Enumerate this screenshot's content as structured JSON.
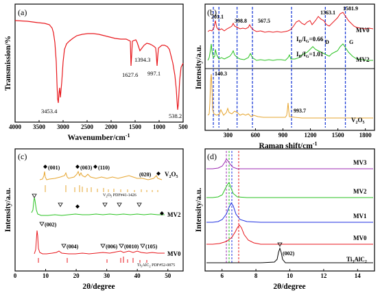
{
  "colors": {
    "black": "#000000",
    "red": "#e8161b",
    "green": "#27c21f",
    "blue": "#1c2de0",
    "purple": "#9b27b0",
    "orange": "#e6a42c",
    "navy": "#1f3fd6"
  },
  "chart_data": [
    {
      "panel": "(a)",
      "type": "line",
      "xlabel": "Wavenumber/cm",
      "xlabel_sup": "-1",
      "ylabel": "Transmission/%",
      "xlim": [
        4000,
        500
      ],
      "xticks": [
        "4000",
        "3500",
        "3000",
        "2500",
        "2000",
        "1500",
        "1000",
        "500"
      ],
      "annotations": [
        "3453.4",
        "1627.6",
        "1394.3",
        "997.1",
        "538.2"
      ]
    },
    {
      "panel": "(b)",
      "type": "line",
      "xlabel": "Raman shift/cm",
      "xlabel_sup": "-1",
      "ylabel": "Intensity/a.u.",
      "xlim": [
        50,
        1900
      ],
      "xticks": [
        "300",
        "600",
        "900",
        "1200",
        "1500",
        "1800"
      ],
      "series": [
        {
          "name": "MV0"
        },
        {
          "name": "MV2"
        },
        {
          "name": "V2O5"
        }
      ],
      "annotations": [
        "201.1",
        "398.8",
        "567.5",
        "1363.1",
        "1581.9",
        "140.3",
        "993.7",
        "D",
        "G"
      ],
      "ratios": [
        {
          "lead": "I",
          "s1": "D",
          "mid": "/I",
          "s2": "G",
          "val": "=0.66"
        },
        {
          "lead": "I",
          "s1": "D",
          "mid": "/I",
          "s2": "G",
          "val": "=1.01"
        }
      ],
      "vlines": [
        140,
        201,
        399,
        567,
        994,
        1363,
        1582
      ]
    },
    {
      "panel": "(c)",
      "type": "line",
      "xlabel": "2θ/degree",
      "ylabel": "Intensity/a.u.",
      "xlim": [
        0,
        55
      ],
      "xticks": [
        "0",
        "10",
        "20",
        "30",
        "40",
        "50"
      ],
      "series": [
        {
          "name": "V2O5"
        },
        {
          "name": "MV2"
        },
        {
          "name": "MV0"
        }
      ],
      "peak_labels": [
        "(001)",
        "(003)",
        "(110)",
        "(020)",
        "(002)",
        "(004)",
        "(006)",
        "(0010)",
        "(105)"
      ],
      "reference_patterns": [
        "V2O5 PDF#41-1426",
        "Ti3AlC2 PDF#52-0875"
      ]
    },
    {
      "panel": "(d)",
      "type": "line",
      "xlabel": "2θ/degree",
      "ylabel": "Intensity/a.u.",
      "xlim": [
        5,
        15
      ],
      "xticks": [
        "6",
        "8",
        "10",
        "12",
        "14"
      ],
      "series": [
        {
          "name": "MV3"
        },
        {
          "name": "MV2"
        },
        {
          "name": "MV1"
        },
        {
          "name": "MV0"
        },
        {
          "name": "Ti3AlC2"
        }
      ],
      "peak_labels": [
        "(002)"
      ]
    }
  ]
}
